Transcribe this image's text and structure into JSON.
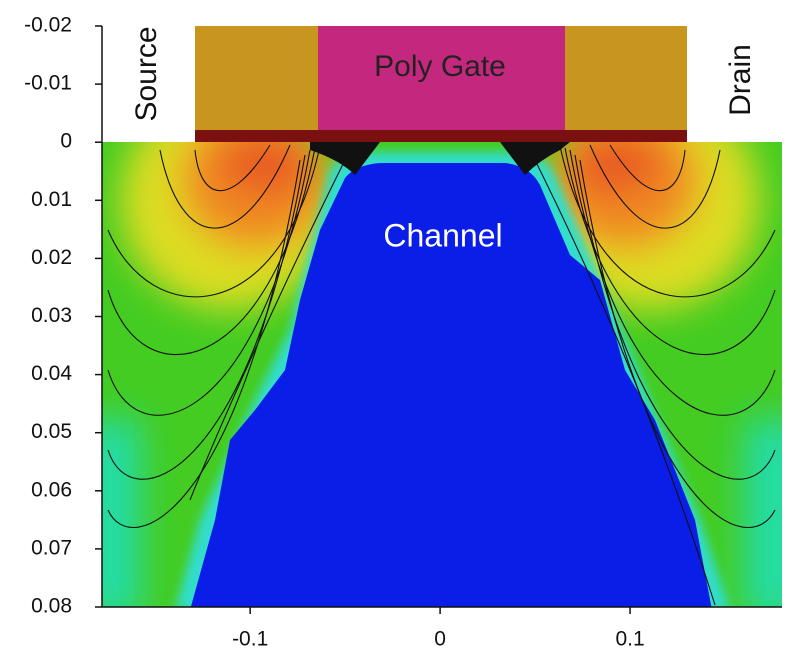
{
  "chart_data": {
    "type": "field",
    "annotations": {
      "source": "Source",
      "gate": "Poly Gate",
      "drain": "Drain",
      "channel": "Channel"
    },
    "xlim": [
      -0.178,
      0.18
    ],
    "xticks": [
      -0.1,
      0,
      0.1
    ],
    "ylim": [
      -0.02,
      0.08
    ],
    "yticks": [
      -0.02,
      -0.01,
      0,
      0.01,
      0.02,
      0.03,
      0.04,
      0.05,
      0.06,
      0.07,
      0.08
    ],
    "y_inverted": true
  }
}
